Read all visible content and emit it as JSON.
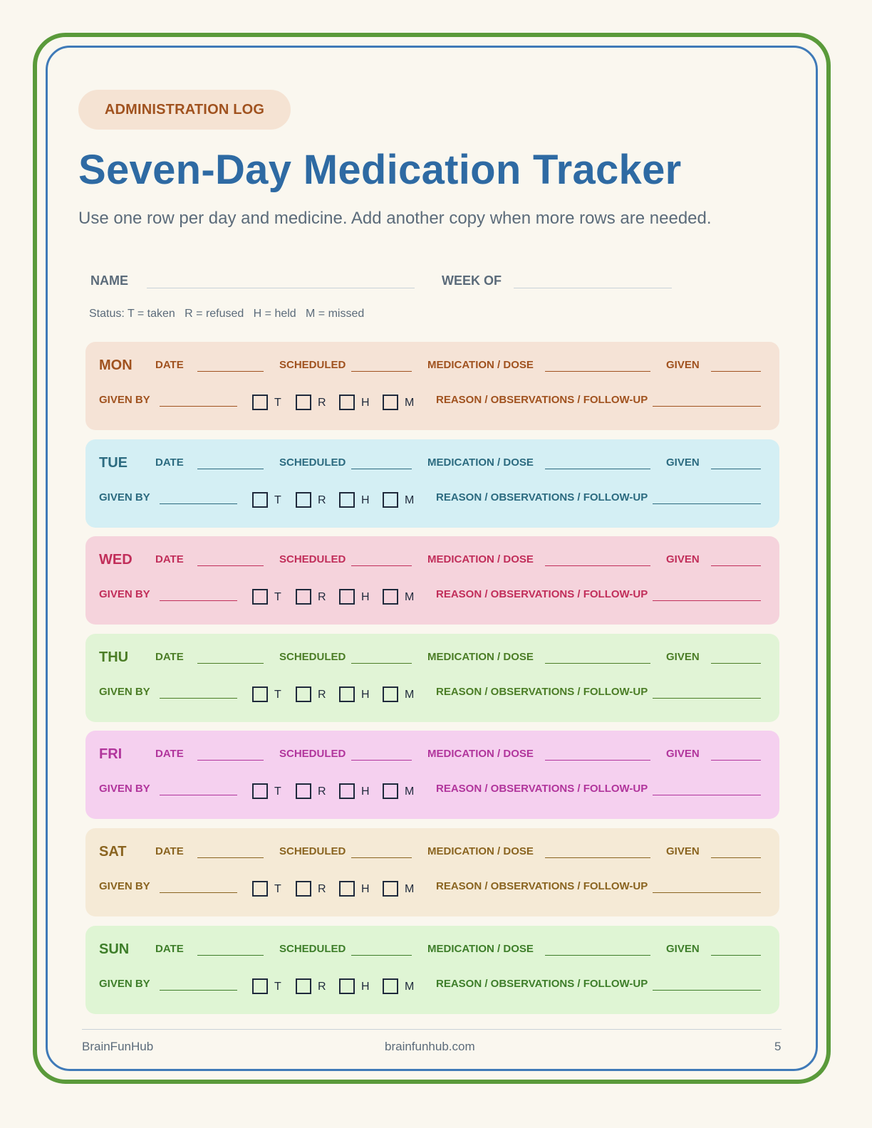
{
  "badge": "ADMINISTRATION LOG",
  "title": "Seven-Day Medication Tracker",
  "subtitle": "Use one row per day and medicine. Add another copy when more rows are needed.",
  "header": {
    "name_label": "NAME",
    "week_label": "WEEK OF"
  },
  "legend": "Status: T = taken   R = refused   H = held   M = missed",
  "row_labels": {
    "date": "DATE",
    "scheduled": "SCHEDULED",
    "medication": "MEDICATION / DOSE",
    "given": "GIVEN",
    "given_by": "GIVEN BY",
    "reason": "REASON / OBSERVATIONS / FOLLOW-UP"
  },
  "status_options": [
    "T",
    "R",
    "H",
    "M"
  ],
  "days": [
    {
      "name": "MON",
      "bg": "#f5e3d6",
      "fg": "#a0521f"
    },
    {
      "name": "TUE",
      "bg": "#d4eff4",
      "fg": "#2c6b80"
    },
    {
      "name": "WED",
      "bg": "#f5d3dc",
      "fg": "#c12e5a"
    },
    {
      "name": "THU",
      "bg": "#e1f4d6",
      "fg": "#4b7d26"
    },
    {
      "name": "FRI",
      "bg": "#f5d0ef",
      "fg": "#b1359c"
    },
    {
      "name": "SAT",
      "bg": "#f5ead6",
      "fg": "#8a6420"
    },
    {
      "name": "SUN",
      "bg": "#dff5d4",
      "fg": "#3e7e2a"
    }
  ],
  "footer": {
    "brand": "BrainFunHub",
    "url": "brainfunhub.com",
    "page": "5"
  }
}
